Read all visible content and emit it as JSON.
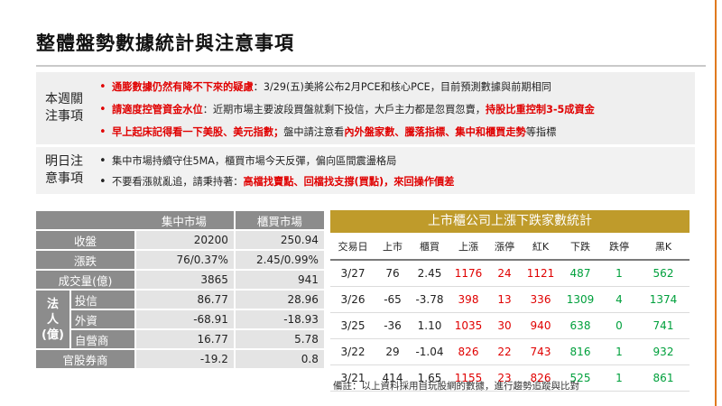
{
  "title": "整體盤勢數據統計與注意事項",
  "notes": {
    "weekly_label": "本週關注事項",
    "weekly_items": [
      {
        "bold": "通膨數據仍然有降不下來的疑慮",
        "rest": "：3/29(五)美將公布2月PCE和核心PCE，目前預測數據與前期相同"
      },
      {
        "bold": "請適度控管資金水位",
        "rest": "：近期市場主要波段買盤就剩下投信，大戶主力都是忽買忽賣，",
        "bold2": "持股比重控制3-5成資金"
      },
      {
        "bold": "早上起床記得看一下美股、美元指數；",
        "rest": "盤中請注意看",
        "bold2": "內外盤家數、騰落指標、集中和櫃買走勢",
        "tail": "等指標"
      }
    ],
    "tomorrow_label": "明日注意事項",
    "tomorrow_items": [
      {
        "text": "集中市場持續守住5MA，櫃買市場今天反彈，偏向區間震盪格局"
      },
      {
        "text": "不要看漲就亂追，請秉持著：",
        "bold": "高檔找賣點、回檔找支撐(買點)，來回操作價差"
      }
    ]
  },
  "market_table": {
    "headers": [
      "",
      "集中市場",
      "櫃買市場"
    ],
    "rows": [
      {
        "label": "收盤",
        "twse": "20200",
        "otc": "250.94"
      },
      {
        "label": "漲跌",
        "twse": "76/0.37%",
        "otc": "2.45/0.99%"
      },
      {
        "label": "成交量(億)",
        "twse": "3865",
        "otc": "941"
      }
    ],
    "inst_label": "法人(億)",
    "inst_rows": [
      {
        "label": "投信",
        "twse": "86.77",
        "otc": "28.96"
      },
      {
        "label": "外資",
        "twse": "-68.91",
        "otc": "-18.93"
      },
      {
        "label": "自營商",
        "twse": "16.77",
        "otc": "5.78"
      }
    ],
    "last_row": {
      "label": "官股券商",
      "twse": "-19.2",
      "otc": "0.8"
    }
  },
  "stats_table": {
    "title": "上市櫃公司上漲下跌家數統計",
    "headers": [
      "交易日",
      "上市",
      "櫃買",
      "上漲",
      "漲停",
      "紅K",
      "下跌",
      "跌停",
      "黑K"
    ],
    "rows": [
      [
        "3/27",
        "76",
        "2.45",
        "1176",
        "24",
        "1121",
        "487",
        "1",
        "562"
      ],
      [
        "3/26",
        "-65",
        "-3.78",
        "398",
        "13",
        "336",
        "1309",
        "4",
        "1374"
      ],
      [
        "3/25",
        "-36",
        "1.10",
        "1035",
        "30",
        "940",
        "638",
        "0",
        "741"
      ],
      [
        "3/22",
        "29",
        "-1.04",
        "826",
        "22",
        "743",
        "816",
        "1",
        "932"
      ],
      [
        "3/21",
        "414",
        "1.65",
        "1155",
        "23",
        "826",
        "525",
        "1",
        "861"
      ]
    ],
    "footnote": "備註：以上資料採用自玩股網的數據，進行趨勢追蹤與比對"
  },
  "colors": {
    "accent": "#e00000",
    "green": "#00a03c",
    "gold": "#bf9b2b",
    "gray": "#8c8c8c"
  }
}
